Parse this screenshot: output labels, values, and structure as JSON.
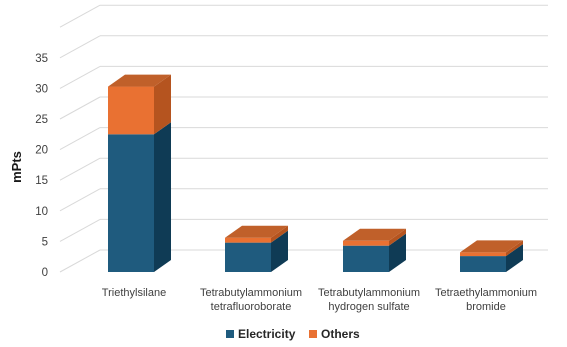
{
  "chart_data": {
    "type": "bar",
    "stacked": true,
    "three_d": true,
    "categories": [
      [
        "Triethylsilane"
      ],
      [
        "Tetrabutylammonium",
        "tetrafluoroborate"
      ],
      [
        "Tetrabutylammonium",
        "hydrogen sulfate"
      ],
      [
        "Tetraethylammonium",
        "bromide"
      ]
    ],
    "series": [
      {
        "name": "Electricity",
        "values": [
          22.5,
          4.8,
          4.3,
          2.6
        ],
        "color": "#1f5b7e",
        "side_color": "#0f3b55",
        "top_color": "#2a7099"
      },
      {
        "name": "Others",
        "values": [
          7.8,
          0.8,
          0.8,
          0.6
        ],
        "color": "#e97132",
        "side_color": "#b5541f",
        "top_color": "#c0602a"
      }
    ],
    "ylabel": "mPts",
    "xlabel": "",
    "title": "",
    "ylim": [
      0,
      40
    ],
    "yticks": [
      0,
      5,
      10,
      15,
      20,
      25,
      30,
      35
    ],
    "grid": true,
    "legend": "bottom"
  }
}
